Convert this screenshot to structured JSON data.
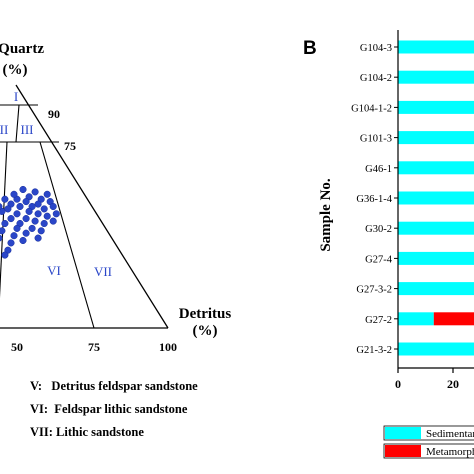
{
  "chart_data": [
    {
      "type": "scatter",
      "subtype": "ternary",
      "title": "",
      "apex_label": "Quartz",
      "apex_unit": "(%)",
      "right_label": "Detritus",
      "right_unit": "(%)",
      "boundary_labels": [
        "90",
        "75"
      ],
      "base_ticks": [
        "50",
        "75",
        "100"
      ],
      "field_labels": [
        "I",
        "II",
        "III",
        "VI",
        "VII"
      ],
      "notes": [
        "V:   Detritus feldspar sandstone",
        "VI:  Feldspar lithic sandstone",
        "VII: Lithic sandstone"
      ],
      "point_color": "#2a46c8",
      "points": [
        {
          "x": 58,
          "y": 53
        },
        {
          "x": 60,
          "y": 55
        },
        {
          "x": 56,
          "y": 56
        },
        {
          "x": 54,
          "y": 54
        },
        {
          "x": 52,
          "y": 57
        },
        {
          "x": 57,
          "y": 51
        },
        {
          "x": 61,
          "y": 52
        },
        {
          "x": 55,
          "y": 50
        },
        {
          "x": 53,
          "y": 52
        },
        {
          "x": 59,
          "y": 49
        },
        {
          "x": 62,
          "y": 50
        },
        {
          "x": 50,
          "y": 53
        },
        {
          "x": 49,
          "y": 55
        },
        {
          "x": 51,
          "y": 50
        },
        {
          "x": 54,
          "y": 48
        },
        {
          "x": 57,
          "y": 47
        },
        {
          "x": 60,
          "y": 46
        },
        {
          "x": 63,
          "y": 47
        },
        {
          "x": 48,
          "y": 51
        },
        {
          "x": 46,
          "y": 53
        },
        {
          "x": 47,
          "y": 49
        },
        {
          "x": 50,
          "y": 47
        },
        {
          "x": 53,
          "y": 45
        },
        {
          "x": 56,
          "y": 44
        },
        {
          "x": 59,
          "y": 43
        },
        {
          "x": 62,
          "y": 44
        },
        {
          "x": 45,
          "y": 48
        },
        {
          "x": 44,
          "y": 50
        },
        {
          "x": 48,
          "y": 45
        },
        {
          "x": 51,
          "y": 43
        },
        {
          "x": 55,
          "y": 41
        },
        {
          "x": 58,
          "y": 40
        },
        {
          "x": 43,
          "y": 46
        },
        {
          "x": 46,
          "y": 43
        },
        {
          "x": 50,
          "y": 41
        },
        {
          "x": 53,
          "y": 39
        },
        {
          "x": 57,
          "y": 37
        },
        {
          "x": 42,
          "y": 43
        },
        {
          "x": 45,
          "y": 40
        },
        {
          "x": 49,
          "y": 38
        },
        {
          "x": 52,
          "y": 36
        },
        {
          "x": 41,
          "y": 40
        },
        {
          "x": 44,
          "y": 37
        },
        {
          "x": 48,
          "y": 35
        },
        {
          "x": 40,
          "y": 37
        },
        {
          "x": 43,
          "y": 34
        },
        {
          "x": 47,
          "y": 32
        },
        {
          "x": 39,
          "y": 34
        },
        {
          "x": 42,
          "y": 31
        },
        {
          "x": 46,
          "y": 30
        },
        {
          "x": 38,
          "y": 31
        },
        {
          "x": 41,
          "y": 28
        },
        {
          "x": 37,
          "y": 28
        },
        {
          "x": 40,
          "y": 26
        },
        {
          "x": 36,
          "y": 25
        },
        {
          "x": 39,
          "y": 23
        },
        {
          "x": 35,
          "y": 22
        },
        {
          "x": 38,
          "y": 20
        }
      ]
    },
    {
      "type": "bar",
      "orientation": "horizontal",
      "stacked": true,
      "panel_label": "B",
      "ylabel": "Sample No.",
      "xlabel": "",
      "x_ticks": [
        "0",
        "20"
      ],
      "categories": [
        "G104-3",
        "G104-2",
        "G104-1-2",
        "G101-3",
        "G46-1",
        "G36-1-4",
        "G30-2",
        "G27-4",
        "G27-3-2",
        "G27-2",
        "G21-3-2"
      ],
      "series": [
        {
          "name": "Sedimentar",
          "color": "#00ffff",
          "values": [
            100,
            100,
            100,
            100,
            100,
            100,
            100,
            100,
            100,
            13,
            100
          ]
        },
        {
          "name": "Metamorph",
          "color": "#ff0000",
          "values": [
            0,
            0,
            0,
            0,
            0,
            0,
            0,
            0,
            0,
            87,
            0
          ]
        }
      ]
    }
  ]
}
